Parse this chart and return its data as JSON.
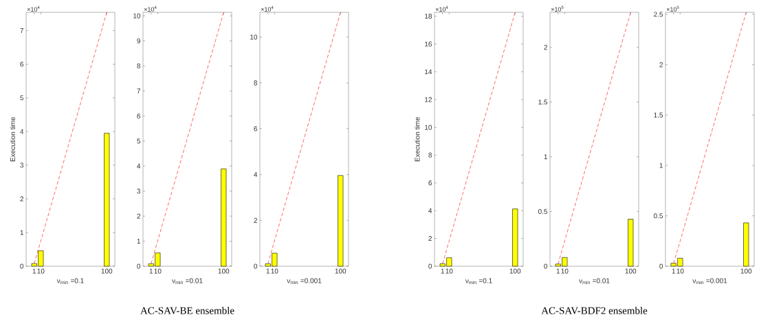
{
  "chart_data": [
    {
      "type": "bar",
      "x": [
        1,
        10,
        100
      ],
      "xlim": [
        -10,
        111
      ],
      "xticks": [
        1,
        10,
        100
      ],
      "ylim": [
        0,
        7.54
      ],
      "yticks": [
        0,
        1,
        2,
        3,
        4,
        5,
        6,
        7
      ],
      "xlabel": "ν$_{min}$ =0.1",
      "ylabel": "Execution time",
      "annotations": [
        "×10$^{4}$"
      ],
      "series": [
        {
          "color": "#ffff00",
          "values": [
            0.08,
            0.46,
            3.95
          ]
        },
        {
          "type": "line",
          "color": "#ff0000",
          "line_style": "dashed",
          "values": [
            0.08,
            0.75,
            7.54
          ]
        }
      ]
    },
    {
      "type": "bar",
      "x": [
        1,
        10,
        100
      ],
      "xlim": [
        -10,
        111
      ],
      "xticks": [
        1,
        10,
        100
      ],
      "ylim": [
        0,
        10.14
      ],
      "yticks": [
        0,
        1,
        2,
        3,
        4,
        5,
        6,
        7,
        8,
        9,
        10
      ],
      "xlabel": "ν$_{min}$ =0.01",
      "annotations": [
        "×10$^{4}$",
        "AC-SAV-BE ensemble"
      ],
      "series": [
        {
          "color": "#ffff00",
          "values": [
            0.1,
            0.53,
            3.89
          ]
        },
        {
          "type": "line",
          "color": "#ff0000",
          "line_style": "dashed",
          "values": [
            0.1,
            1.01,
            10.14
          ]
        }
      ]
    },
    {
      "type": "bar",
      "x": [
        1,
        10,
        100
      ],
      "xlim": [
        -10,
        111
      ],
      "xticks": [
        1,
        10,
        100
      ],
      "ylim": [
        0,
        11.08
      ],
      "yticks": [
        0,
        2,
        4,
        6,
        8,
        10
      ],
      "xlabel": "ν$_{min}$ =0.001",
      "annotations": [
        "×10$^{4}$"
      ],
      "series": [
        {
          "color": "#ffff00",
          "values": [
            0.11,
            0.57,
            3.96
          ]
        },
        {
          "type": "line",
          "color": "#ff0000",
          "line_style": "dashed",
          "values": [
            0.11,
            1.11,
            11.08
          ]
        }
      ]
    },
    {
      "type": "bar",
      "x": [
        1,
        10,
        100
      ],
      "xlim": [
        -10,
        111
      ],
      "xticks": [
        1,
        10,
        100
      ],
      "ylim": [
        0,
        18.28
      ],
      "yticks": [
        0,
        2,
        4,
        6,
        8,
        10,
        12,
        14,
        16,
        18
      ],
      "xlabel": "ν$_{min}$ =0.1",
      "ylabel": "Execution time",
      "annotations": [
        "×10$^{4}$"
      ],
      "series": [
        {
          "color": "#ffff00",
          "values": [
            0.18,
            0.61,
            4.13
          ]
        },
        {
          "type": "line",
          "color": "#ff0000",
          "line_style": "dashed",
          "values": [
            0.18,
            1.83,
            18.28
          ]
        }
      ]
    },
    {
      "type": "bar",
      "x": [
        1,
        10,
        100
      ],
      "xlim": [
        -10,
        111
      ],
      "xticks": [
        1,
        10,
        100
      ],
      "ylim": [
        0,
        2.32
      ],
      "yticks": [
        0,
        0.5,
        1,
        1.5,
        2
      ],
      "xlabel": "ν$_{min}$ =0.01",
      "annotations": [
        "×10$^{5}$",
        "AC-SAV-BDF2 ensemble"
      ],
      "series": [
        {
          "color": "#ffff00",
          "values": [
            0.02,
            0.08,
            0.43
          ]
        },
        {
          "type": "line",
          "color": "#ff0000",
          "line_style": "dashed",
          "values": [
            0.02,
            0.23,
            2.32
          ]
        }
      ]
    },
    {
      "type": "bar",
      "x": [
        1,
        10,
        100
      ],
      "xlim": [
        -10,
        111
      ],
      "xticks": [
        1,
        10,
        100
      ],
      "ylim": [
        0,
        2.52
      ],
      "yticks": [
        0,
        0.5,
        1,
        1.5,
        2,
        2.5
      ],
      "xlabel": "ν$_{min}$ =0.001",
      "annotations": [
        "×10$^{5}$"
      ],
      "series": [
        {
          "color": "#ffff00",
          "values": [
            0.03,
            0.08,
            0.43
          ]
        },
        {
          "type": "line",
          "color": "#ff0000",
          "line_style": "dashed",
          "values": [
            0.03,
            0.25,
            2.52
          ]
        }
      ]
    }
  ]
}
